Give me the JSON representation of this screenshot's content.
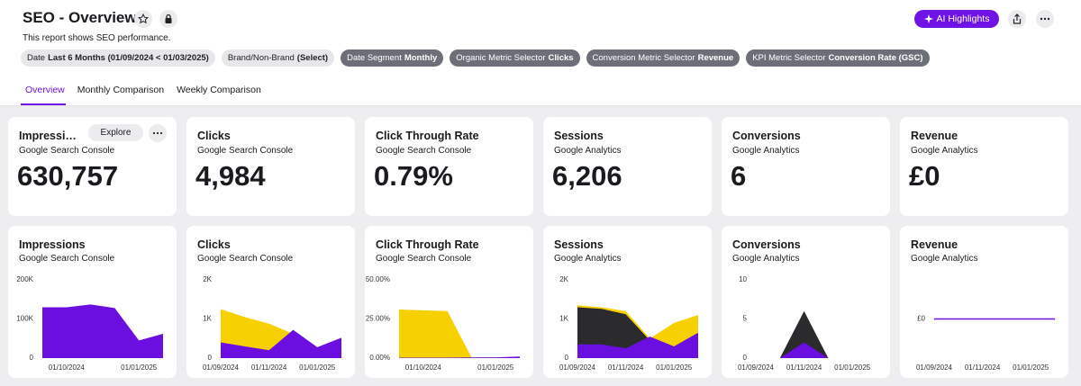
{
  "header": {
    "title": "SEO - Overview",
    "description": "This report shows SEO performance.",
    "ai_button": "AI Highlights"
  },
  "filters": [
    {
      "label": "Date",
      "value": "Last 6 Months (01/09/2024 < 01/03/2025)"
    },
    {
      "label": "Brand/Non-Brand",
      "value": "(Select)"
    },
    {
      "label": "Date Segment",
      "value": "Monthly"
    },
    {
      "label": "Organic Metric Selector",
      "value": "Clicks"
    },
    {
      "label": "Conversion Metric Selector",
      "value": "Revenue"
    },
    {
      "label": "KPI Metric Selector",
      "value": "Conversion Rate (GSC)"
    }
  ],
  "tabs": [
    "Overview",
    "Monthly Comparison",
    "Weekly Comparison"
  ],
  "explore_button": "Explore",
  "kpis": [
    {
      "title": "Impressions",
      "source": "Google Search Console",
      "value": "630,757"
    },
    {
      "title": "Clicks",
      "source": "Google Search Console",
      "value": "4,984"
    },
    {
      "title": "Click Through Rate",
      "source": "Google Search Console",
      "value": "0.79%"
    },
    {
      "title": "Sessions",
      "source": "Google Analytics",
      "value": "6,206"
    },
    {
      "title": "Conversions",
      "source": "Google Analytics",
      "value": "6"
    },
    {
      "title": "Revenue",
      "source": "Google Analytics",
      "value": "£0"
    }
  ],
  "chart_data": [
    {
      "type": "area",
      "title": "Impressions",
      "subtitle": "Google Search Console",
      "categories": [
        null,
        "01/10/2024",
        null,
        null,
        "01/01/2025",
        null
      ],
      "series": [
        {
          "color": "#6b0ee0",
          "values": [
            130000,
            130000,
            137000,
            128000,
            45000,
            62000
          ]
        }
      ],
      "ylim": [
        0,
        200000
      ],
      "yticks": [
        0,
        {
          "value": 100000,
          "label": "100K"
        },
        {
          "value": 200000,
          "label": "200K"
        }
      ]
    },
    {
      "type": "area",
      "title": "Clicks",
      "subtitle": "Google Search Console",
      "categories": [
        "01/09/2024",
        null,
        "01/11/2024",
        null,
        "01/01/2025",
        null
      ],
      "series": [
        {
          "color": "#f7d000",
          "values": [
            1250,
            1050,
            880,
            620,
            250,
            450
          ]
        },
        {
          "color": "#6b0ee0",
          "values": [
            400,
            300,
            200,
            720,
            280,
            520
          ]
        }
      ],
      "ylim": [
        0,
        2000
      ],
      "yticks": [
        0,
        {
          "value": 1000,
          "label": "1K"
        },
        {
          "value": 2000,
          "label": "2K"
        }
      ]
    },
    {
      "type": "area",
      "title": "Click Through Rate",
      "subtitle": "Google Search Console",
      "categories": [
        null,
        "01/10/2024",
        null,
        null,
        "01/01/2025",
        null
      ],
      "series": [
        {
          "color": "#f7d000",
          "values": [
            31,
            30.5,
            30,
            0.5,
            0.5,
            0.8
          ]
        },
        {
          "color": "#6b0ee0",
          "values": [
            0.3,
            0.3,
            0.3,
            0.4,
            0.5,
            1
          ]
        }
      ],
      "ylim": [
        0,
        50
      ],
      "yticks": [
        {
          "value": 0,
          "label": "0.00%"
        },
        {
          "value": 25,
          "label": "25.00%"
        },
        {
          "value": 50,
          "label": "50.00%"
        }
      ]
    },
    {
      "type": "area",
      "title": "Sessions",
      "subtitle": "Google Analytics",
      "categories": [
        "01/09/2024",
        null,
        "01/11/2024",
        null,
        "01/01/2025",
        null
      ],
      "series": [
        {
          "color": "#f7d000",
          "values": [
            1350,
            1300,
            1200,
            500,
            900,
            1100
          ]
        },
        {
          "color": "#2b2b2e",
          "values": [
            1300,
            1260,
            1120,
            450,
            150,
            300
          ]
        },
        {
          "color": "#6b0ee0",
          "values": [
            350,
            350,
            250,
            550,
            300,
            650
          ]
        }
      ],
      "ylim": [
        0,
        2000
      ],
      "yticks": [
        0,
        {
          "value": 1000,
          "label": "1K"
        },
        {
          "value": 2000,
          "label": "2K"
        }
      ]
    },
    {
      "type": "area",
      "title": "Conversions",
      "subtitle": "Google Analytics",
      "categories": [
        "01/09/2024",
        null,
        "01/11/2024",
        null,
        "01/01/2025",
        null
      ],
      "series": [
        {
          "color": "#2b2b2e",
          "values": [
            0,
            0,
            6,
            0,
            0,
            0
          ]
        },
        {
          "color": "#6b0ee0",
          "values": [
            0,
            0,
            2,
            0,
            0,
            0
          ]
        }
      ],
      "ylim": [
        0,
        10
      ],
      "yticks": [
        0,
        5,
        10
      ]
    },
    {
      "type": "line",
      "title": "Revenue",
      "subtitle": "Google Analytics",
      "categories": [
        "01/09/2024",
        null,
        "01/11/2024",
        null,
        "01/01/2025",
        null
      ],
      "series": [
        {
          "color": "#6b0ee0",
          "values": [
            0,
            0,
            0,
            0,
            0,
            0
          ]
        }
      ],
      "ylim": [
        -1,
        1
      ],
      "yticks": [
        {
          "value": 0,
          "label": "£0"
        }
      ]
    }
  ]
}
